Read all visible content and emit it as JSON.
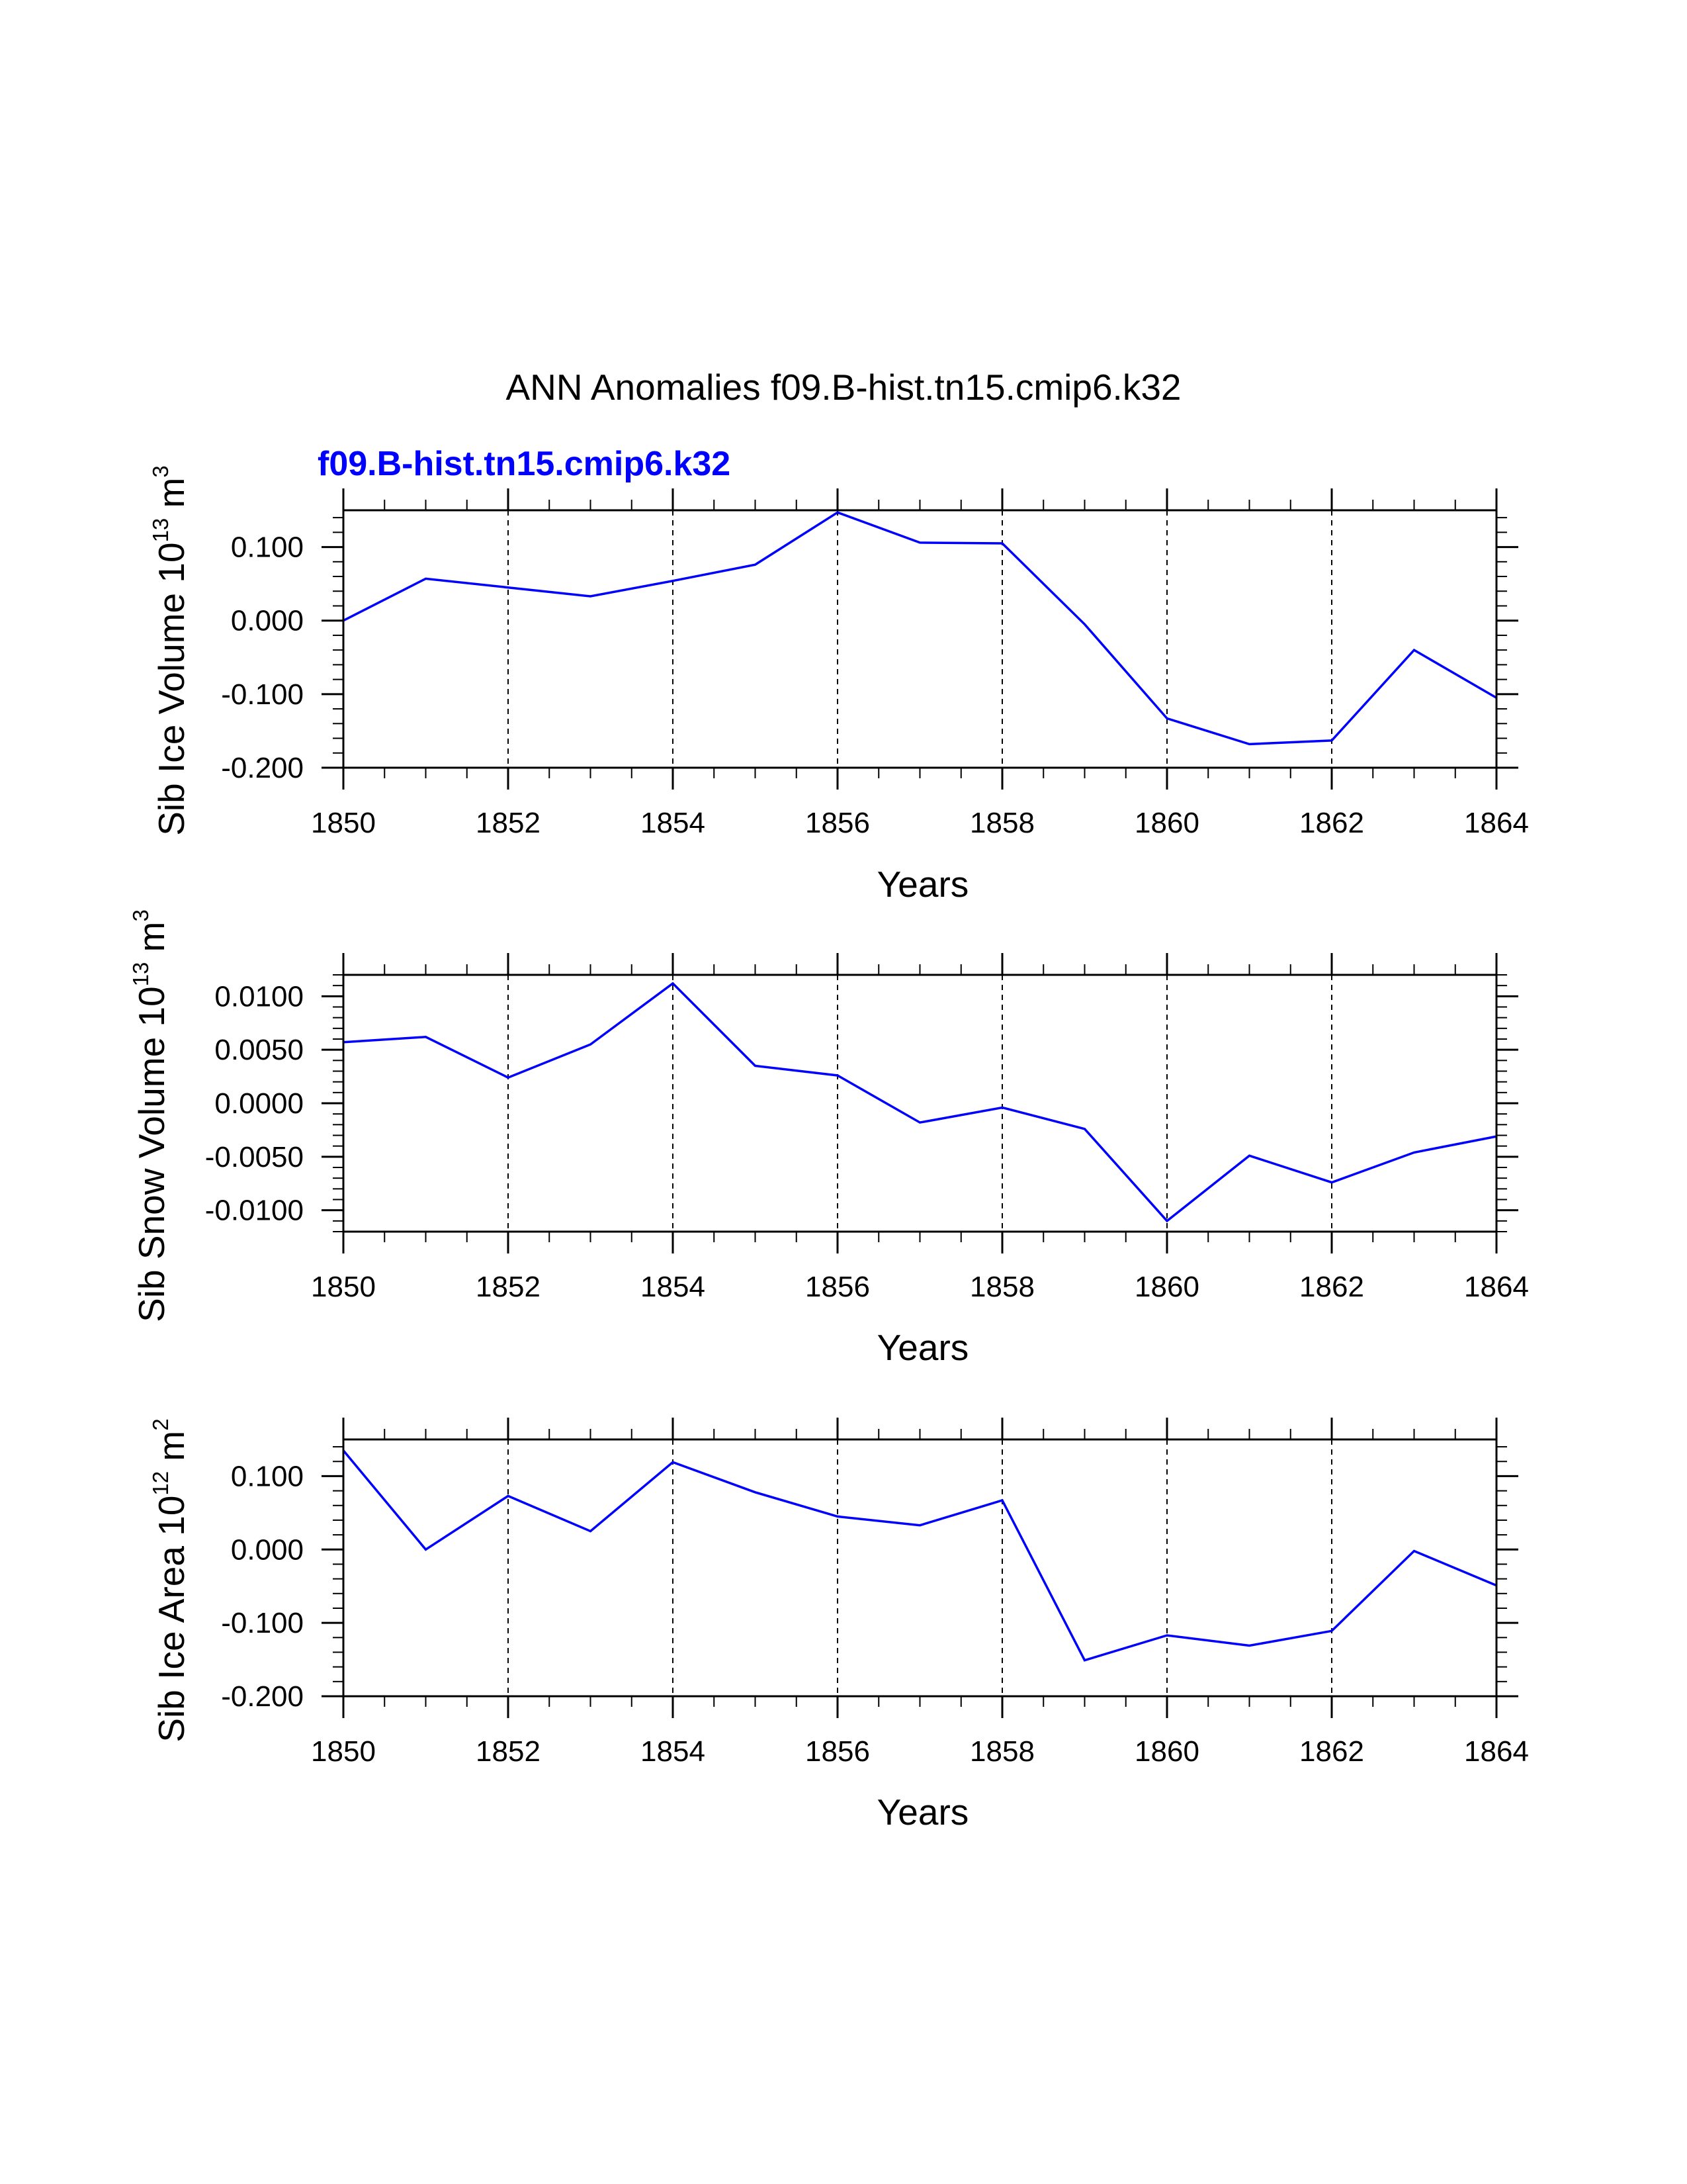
{
  "figure": {
    "title": "ANN Anomalies f09.B-hist.tn15.cmip6.k32",
    "legend_label": "f09.B-hist.tn15.cmip6.k32",
    "line_color": "#0000ff"
  },
  "chart_data": [
    {
      "type": "line",
      "title": "",
      "xlabel": "Years",
      "ylabel": "Sib Ice Volume 10",
      "ylabel_exp": "13",
      "ylabel_unit": " m",
      "ylabel_unit_exp": "3",
      "xlim": [
        1850,
        1864
      ],
      "ylim": [
        -0.2,
        0.15
      ],
      "xticks": [
        1850,
        1852,
        1854,
        1856,
        1858,
        1860,
        1862,
        1864
      ],
      "xtick_labels": [
        "1850",
        "1852",
        "1854",
        "1856",
        "1858",
        "1860",
        "1862",
        "1864"
      ],
      "yticks": [
        -0.2,
        -0.1,
        0.0,
        0.1
      ],
      "ytick_labels": [
        "-0.200",
        "-0.100",
        "0.000",
        "0.100"
      ],
      "grid": "dashed vertical at major x ticks",
      "series": [
        {
          "name": "f09.B-hist.tn15.cmip6.k32",
          "x": [
            1850,
            1851,
            1852,
            1853,
            1854,
            1855,
            1856,
            1857,
            1858,
            1859,
            1860,
            1861,
            1862,
            1863,
            1864
          ],
          "y": [
            0.0,
            0.057,
            0.045,
            0.033,
            0.054,
            0.076,
            0.147,
            0.106,
            0.105,
            -0.005,
            -0.133,
            -0.168,
            -0.163,
            -0.04,
            -0.105
          ]
        }
      ]
    },
    {
      "type": "line",
      "title": "",
      "xlabel": "Years",
      "ylabel": "Sib Snow Volume 10",
      "ylabel_exp": "13",
      "ylabel_unit": " m",
      "ylabel_unit_exp": "3",
      "xlim": [
        1850,
        1864
      ],
      "ylim": [
        -0.012,
        0.012
      ],
      "xticks": [
        1850,
        1852,
        1854,
        1856,
        1858,
        1860,
        1862,
        1864
      ],
      "xtick_labels": [
        "1850",
        "1852",
        "1854",
        "1856",
        "1858",
        "1860",
        "1862",
        "1864"
      ],
      "yticks": [
        -0.01,
        -0.005,
        0.0,
        0.005,
        0.01
      ],
      "ytick_labels": [
        "-0.0100",
        "-0.0050",
        "0.0000",
        "0.0050",
        "0.0100"
      ],
      "grid": "dashed vertical at major x ticks",
      "series": [
        {
          "name": "f09.B-hist.tn15.cmip6.k32",
          "x": [
            1850,
            1851,
            1852,
            1853,
            1854,
            1855,
            1856,
            1857,
            1858,
            1859,
            1860,
            1861,
            1862,
            1863,
            1864
          ],
          "y": [
            0.0057,
            0.0062,
            0.0024,
            0.0055,
            0.0112,
            0.0035,
            0.0026,
            -0.0018,
            -0.0004,
            -0.0024,
            -0.011,
            -0.0049,
            -0.0074,
            -0.0046,
            -0.0031
          ]
        }
      ]
    },
    {
      "type": "line",
      "title": "",
      "xlabel": "Years",
      "ylabel": "Sib Ice Area 10",
      "ylabel_exp": "12",
      "ylabel_unit": " m",
      "ylabel_unit_exp": "2",
      "xlim": [
        1850,
        1864
      ],
      "ylim": [
        -0.2,
        0.15
      ],
      "xticks": [
        1850,
        1852,
        1854,
        1856,
        1858,
        1860,
        1862,
        1864
      ],
      "xtick_labels": [
        "1850",
        "1852",
        "1854",
        "1856",
        "1858",
        "1860",
        "1862",
        "1864"
      ],
      "yticks": [
        -0.2,
        -0.1,
        0.0,
        0.1
      ],
      "ytick_labels": [
        "-0.200",
        "-0.100",
        "0.000",
        "0.100"
      ],
      "grid": "dashed vertical at major x ticks",
      "series": [
        {
          "name": "f09.B-hist.tn15.cmip6.k32",
          "x": [
            1850,
            1851,
            1852,
            1853,
            1854,
            1855,
            1856,
            1857,
            1858,
            1859,
            1860,
            1861,
            1862,
            1863,
            1864
          ],
          "y": [
            0.135,
            0.0,
            0.073,
            0.025,
            0.119,
            0.078,
            0.045,
            0.033,
            0.067,
            -0.151,
            -0.117,
            -0.131,
            -0.111,
            -0.002,
            -0.049
          ]
        }
      ]
    }
  ]
}
